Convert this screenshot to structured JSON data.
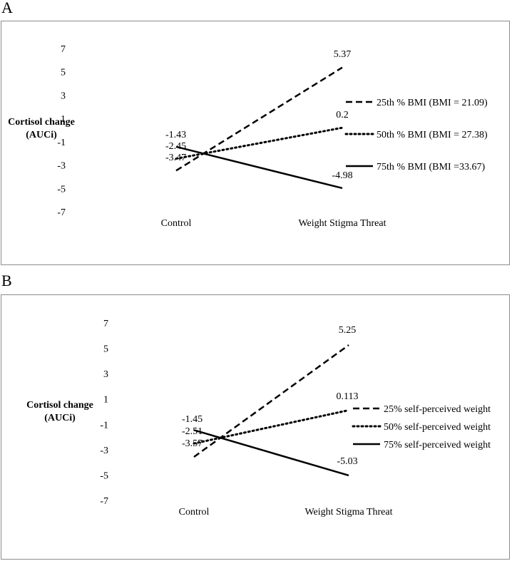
{
  "panels": [
    {
      "letter": "A",
      "chart_data": {
        "type": "line",
        "title": "",
        "xlabel": "",
        "ylabel_lines": [
          "Cortisol change",
          "(AUCi)"
        ],
        "categories": [
          "Control",
          "Weight Stigma Threat"
        ],
        "yticks": [
          7,
          5,
          3,
          1,
          -1,
          -3,
          -5,
          -7
        ],
        "ylim": [
          -7,
          7
        ],
        "series": [
          {
            "name": "25th % BMI (BMI = 21.09)",
            "style": "dashed",
            "values": [
              -3.47,
              5.37
            ],
            "labels": [
              "-3.47",
              "5.37"
            ]
          },
          {
            "name": "50th % BMI (BMI = 27.38)",
            "style": "dotted",
            "values": [
              -2.45,
              0.2
            ],
            "labels": [
              "-2.45",
              "0.2"
            ]
          },
          {
            "name": "75th % BMI (BMI =33.67)",
            "style": "solid",
            "values": [
              -1.43,
              -4.98
            ],
            "labels": [
              "-1.43",
              "-4.98"
            ]
          }
        ]
      }
    },
    {
      "letter": "B",
      "chart_data": {
        "type": "line",
        "title": "",
        "xlabel": "",
        "ylabel_lines": [
          "Cortisol change",
          "(AUCi)"
        ],
        "categories": [
          "Control",
          "Weight Stigma Threat"
        ],
        "yticks": [
          7,
          5,
          3,
          1,
          -1,
          -3,
          -5,
          -7
        ],
        "ylim": [
          -7,
          7
        ],
        "series": [
          {
            "name": "25% self-perceived weight",
            "style": "dashed",
            "values": [
              -3.57,
              5.25
            ],
            "labels": [
              "-3.57",
              "5.25"
            ]
          },
          {
            "name": "50% self-perceived weight",
            "style": "dotted",
            "values": [
              -2.51,
              0.113
            ],
            "labels": [
              "-2.51",
              "0.113"
            ]
          },
          {
            "name": "75% self-perceived weight",
            "style": "solid",
            "values": [
              -1.45,
              -5.03
            ],
            "labels": [
              "-1.45",
              "-5.03"
            ]
          }
        ]
      }
    }
  ]
}
